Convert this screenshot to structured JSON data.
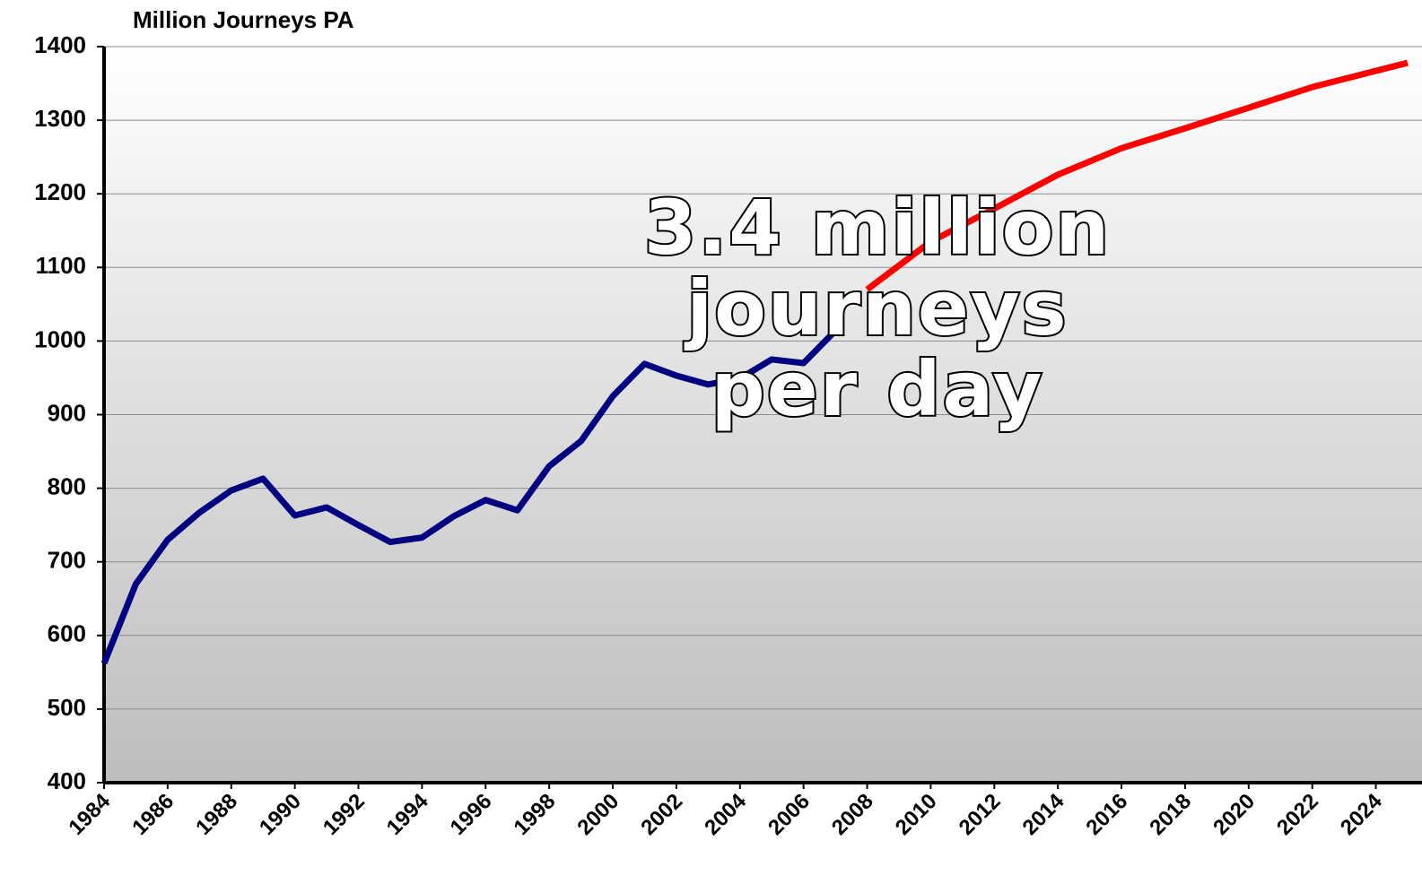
{
  "chart_data": {
    "type": "line",
    "title": "Million Journeys PA",
    "annotation": [
      "3.4 million",
      "journeys",
      "per day"
    ],
    "xlim": [
      1984,
      2025
    ],
    "xticks": [
      1984,
      1986,
      1988,
      1990,
      1992,
      1994,
      1996,
      1998,
      2000,
      2002,
      2004,
      2006,
      2008,
      2010,
      2012,
      2014,
      2016,
      2018,
      2020,
      2022,
      2024
    ],
    "ylim": [
      400,
      1400
    ],
    "yticks": [
      400,
      500,
      600,
      700,
      800,
      900,
      1000,
      1100,
      1200,
      1300,
      1400
    ],
    "grid": true,
    "series": [
      {
        "color": "#000080",
        "x": [
          1984,
          1985,
          1986,
          1987,
          1988,
          1989,
          1990,
          1991,
          1992,
          1993,
          1994,
          1995,
          1996,
          1997,
          1998,
          1999,
          2000,
          2001,
          2002,
          2003,
          2004,
          2005,
          2006,
          2007
        ],
        "values": [
          562,
          670,
          730,
          767,
          797,
          813,
          763,
          774,
          750,
          727,
          733,
          762,
          784,
          770,
          830,
          864,
          925,
          969,
          953,
          941,
          949,
          975,
          970,
          1014
        ]
      },
      {
        "color": "#ff0000",
        "x": [
          2008,
          2010,
          2012,
          2014,
          2016,
          2018,
          2020,
          2022,
          2025
        ],
        "values": [
          1070,
          1135,
          1180,
          1226,
          1262,
          1289,
          1317,
          1345,
          1378
        ]
      }
    ]
  }
}
